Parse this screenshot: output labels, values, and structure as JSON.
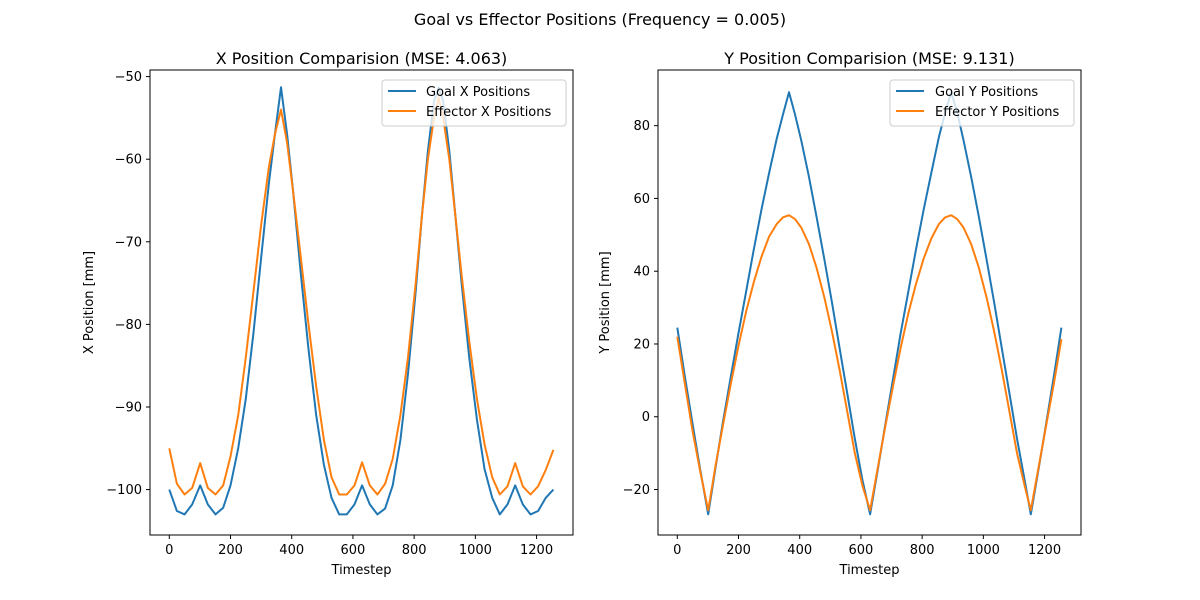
{
  "figure": {
    "title": "Goal vs Effector Positions (Frequency = 0.005)",
    "colors": {
      "goal": "#1f77b4",
      "effector": "#ff7f0e"
    }
  },
  "chart_data": [
    {
      "type": "line",
      "title": "X Position Comparision (MSE: 4.063)",
      "xlabel": "Timestep",
      "ylabel": "X Position [mm]",
      "xlim": [
        -63,
        1319
      ],
      "ylim": [
        -105.5,
        -49.2
      ],
      "xticks": [
        0,
        200,
        400,
        600,
        800,
        1000,
        1200
      ],
      "xtick_labels": [
        "0",
        "200",
        "400",
        "600",
        "800",
        "1000",
        "1200"
      ],
      "yticks": [
        -100,
        -90,
        -80,
        -70,
        -60,
        -50
      ],
      "ytick_labels": [
        "−100",
        "−90",
        "−80",
        "−70",
        "−60",
        "−50"
      ],
      "legend_position": "top-right",
      "series": [
        {
          "name": "Goal X Positions",
          "color": "#1f77b4",
          "x": [
            0,
            25,
            50,
            75,
            101,
            126,
            151,
            176,
            200,
            225,
            250,
            275,
            300,
            325,
            345,
            365,
            385,
            405,
            430,
            455,
            480,
            505,
            530,
            555,
            580,
            605,
            630,
            655,
            680,
            705,
            730,
            755,
            780,
            805,
            825,
            845,
            865,
            880,
            895,
            915,
            935,
            955,
            980,
            1005,
            1030,
            1055,
            1080,
            1105,
            1130,
            1155,
            1180,
            1205,
            1230,
            1255
          ],
          "y": [
            -100,
            -102.6,
            -103,
            -101.8,
            -99.5,
            -101.8,
            -103,
            -102.2,
            -99.5,
            -95,
            -89,
            -81,
            -72,
            -63,
            -57,
            -51.3,
            -57,
            -64,
            -74,
            -83,
            -91,
            -97,
            -101,
            -103,
            -103,
            -101.8,
            -99.5,
            -101.8,
            -103,
            -102.3,
            -99.5,
            -94,
            -86,
            -76,
            -67,
            -59,
            -53,
            -51.3,
            -53,
            -59,
            -67,
            -75,
            -84,
            -91.5,
            -97.5,
            -101,
            -103,
            -101.8,
            -99.5,
            -101.8,
            -103,
            -102.6,
            -101,
            -100
          ]
        },
        {
          "name": "Effector X Positions",
          "color": "#ff7f0e",
          "x": [
            0,
            25,
            50,
            75,
            101,
            126,
            151,
            176,
            200,
            225,
            250,
            275,
            300,
            325,
            345,
            365,
            385,
            405,
            430,
            455,
            480,
            505,
            530,
            555,
            580,
            605,
            630,
            655,
            680,
            705,
            730,
            755,
            780,
            805,
            825,
            845,
            865,
            880,
            895,
            915,
            935,
            955,
            980,
            1005,
            1030,
            1055,
            1080,
            1105,
            1130,
            1155,
            1180,
            1205,
            1230,
            1255
          ],
          "y": [
            -95,
            -99.3,
            -100.6,
            -99.8,
            -96.8,
            -99.8,
            -100.6,
            -99.5,
            -96,
            -91,
            -84,
            -76,
            -68,
            -61,
            -57,
            -54,
            -58,
            -64,
            -72,
            -80,
            -87.5,
            -94,
            -98.5,
            -100.6,
            -100.6,
            -99.5,
            -96.7,
            -99.5,
            -100.6,
            -99.3,
            -96.3,
            -91,
            -84,
            -75,
            -67,
            -60,
            -55,
            -52.5,
            -55,
            -60,
            -67,
            -74,
            -82,
            -89,
            -94.5,
            -98.5,
            -100.6,
            -99.6,
            -96.8,
            -99.6,
            -100.6,
            -99.6,
            -97.6,
            -95.2
          ]
        }
      ]
    },
    {
      "type": "line",
      "title": "Y Position Comparision (MSE: 9.131)",
      "xlabel": "Timestep",
      "ylabel": "Y Position [mm]",
      "xlim": [
        -63,
        1319
      ],
      "ylim": [
        -32.5,
        95.3
      ],
      "xticks": [
        0,
        200,
        400,
        600,
        800,
        1000,
        1200
      ],
      "xtick_labels": [
        "0",
        "200",
        "400",
        "600",
        "800",
        "1000",
        "1200"
      ],
      "yticks": [
        -20,
        0,
        20,
        40,
        60,
        80
      ],
      "ytick_labels": [
        "−20",
        "0",
        "20",
        "40",
        "60",
        "80"
      ],
      "legend_position": "top-right",
      "series": [
        {
          "name": "Goal Y Positions",
          "color": "#1f77b4",
          "x": [
            0,
            25,
            50,
            75,
            101,
            125,
            150,
            175,
            200,
            225,
            250,
            275,
            300,
            325,
            345,
            365,
            385,
            405,
            430,
            455,
            480,
            505,
            530,
            555,
            580,
            605,
            630,
            655,
            680,
            705,
            730,
            755,
            780,
            805,
            830,
            855,
            875,
            895,
            915,
            935,
            960,
            985,
            1010,
            1035,
            1060,
            1085,
            1110,
            1135,
            1155,
            1180,
            1205,
            1230,
            1255
          ],
          "y": [
            24.5,
            11,
            -2,
            -14.5,
            -26.8,
            -14,
            -1,
            11,
            23,
            34.5,
            46,
            57,
            67,
            76.5,
            83,
            89.2,
            83,
            76,
            66,
            55,
            43.5,
            31.5,
            19,
            6.5,
            -6,
            -17.5,
            -26.8,
            -14.5,
            -2,
            10.5,
            23,
            34.5,
            46,
            57,
            67,
            77,
            83.5,
            89.2,
            83.5,
            76,
            66,
            55,
            43.5,
            31.5,
            19,
            6.5,
            -6,
            -17.5,
            -26.8,
            -14.5,
            -2,
            11,
            24.5
          ]
        },
        {
          "name": "Effector Y Positions",
          "color": "#ff7f0e",
          "x": [
            0,
            25,
            50,
            75,
            101,
            125,
            150,
            175,
            200,
            225,
            250,
            275,
            300,
            325,
            345,
            365,
            385,
            405,
            430,
            455,
            480,
            505,
            530,
            555,
            580,
            605,
            630,
            655,
            680,
            705,
            730,
            755,
            780,
            805,
            830,
            855,
            875,
            895,
            915,
            935,
            960,
            985,
            1010,
            1035,
            1060,
            1085,
            1110,
            1135,
            1155,
            1180,
            1205,
            1230,
            1255
          ],
          "y": [
            22,
            9,
            -4,
            -15,
            -25.7,
            -13.5,
            -2,
            9,
            19.5,
            29,
            37,
            44,
            49.5,
            53,
            54.8,
            55.4,
            54.3,
            52,
            47.5,
            41,
            33,
            23.5,
            13,
            1.5,
            -10,
            -19,
            -25.7,
            -14,
            -2.5,
            8.5,
            19,
            28.5,
            36.5,
            43.5,
            49,
            53,
            54.8,
            55.4,
            54.3,
            52,
            47.5,
            41,
            33,
            23.5,
            13,
            1.5,
            -10,
            -19,
            -25.7,
            -14,
            -2.5,
            9,
            21.3
          ]
        }
      ]
    }
  ]
}
